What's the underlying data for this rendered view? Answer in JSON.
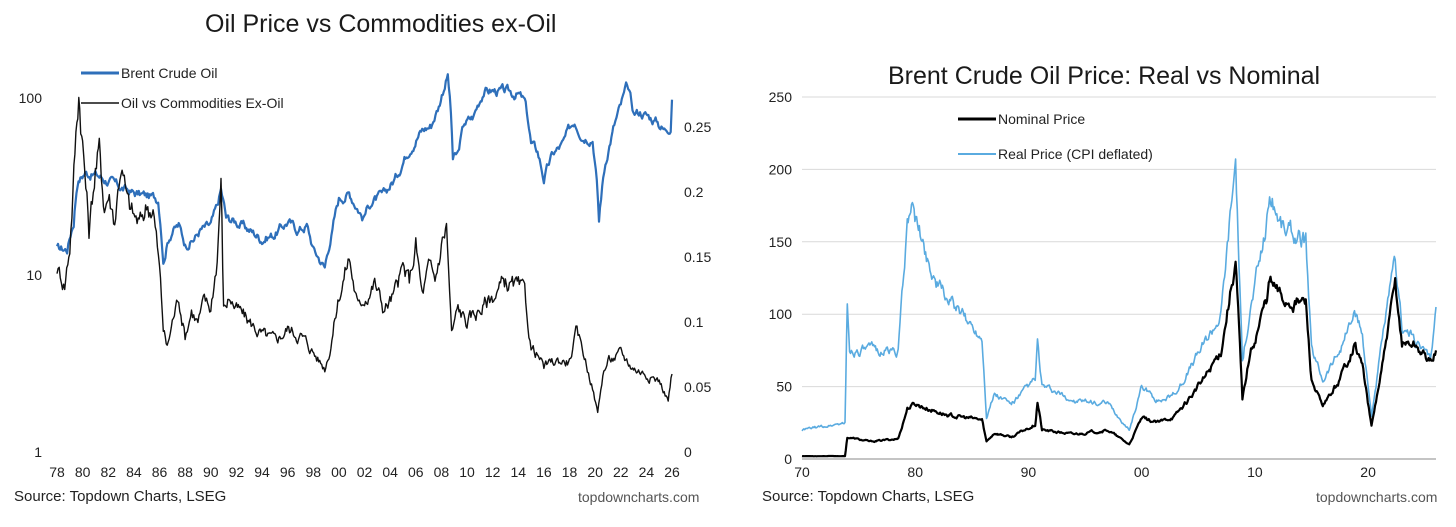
{
  "chart_data": [
    {
      "type": "line",
      "title": "Oil Price vs Commodities ex-Oil",
      "source": "Source: Topdown Charts, LSEG",
      "brand": "topdowncharts.com",
      "legend_position": "top-left",
      "grid": false,
      "x_ticks": [
        "78",
        "80",
        "82",
        "84",
        "86",
        "88",
        "90",
        "92",
        "94",
        "96",
        "98",
        "00",
        "02",
        "04",
        "06",
        "08",
        "10",
        "12",
        "14",
        "16",
        "18",
        "20",
        "22",
        "24",
        "26"
      ],
      "x_range": [
        1978,
        2026
      ],
      "y_left": {
        "scale": "log",
        "range": [
          1,
          160
        ],
        "ticks": [
          "1",
          "10",
          "100"
        ]
      },
      "y_right": {
        "scale": "linear",
        "range": [
          0,
          0.3
        ],
        "ticks": [
          "0",
          "0.05",
          "0.1",
          "0.15",
          "0.2",
          "0.25"
        ]
      },
      "series": [
        {
          "name": "Brent Crude Oil",
          "axis": "left",
          "color": "#2e6fba",
          "x": [
            1978.0,
            1978.8,
            1979.3,
            1979.6,
            1980.2,
            1981.0,
            1982.0,
            1983.0,
            1984.0,
            1985.0,
            1985.9,
            1986.3,
            1986.7,
            1987.0,
            1987.5,
            1988.0,
            1988.7,
            1989.2,
            1990.0,
            1990.5,
            1990.8,
            1991.2,
            1992.0,
            1993.0,
            1994.0,
            1995.0,
            1996.0,
            1996.8,
            1997.5,
            1998.0,
            1998.9,
            1999.5,
            2000.0,
            2000.8,
            2001.9,
            2002.5,
            2003.5,
            2004.5,
            2005.5,
            2006.5,
            2007.2,
            2007.8,
            2008.5,
            2008.9,
            2009.3,
            2009.8,
            2010.5,
            2011.3,
            2012.0,
            2013.0,
            2014.0,
            2014.5,
            2015.0,
            2015.5,
            2016.0,
            2016.7,
            2017.5,
            2018.4,
            2019.0,
            2019.8,
            2020.3,
            2020.8,
            2021.5,
            2022.0,
            2022.5,
            2023.0,
            2023.5,
            2024.0,
            2024.8,
            2025.4,
            2025.9,
            2026.0
          ],
          "values": [
            14,
            14,
            20,
            34,
            38,
            37,
            34,
            31,
            29,
            28,
            27,
            12,
            16,
            18,
            19,
            15,
            16,
            18,
            19,
            24,
            30,
            21,
            20,
            18,
            16,
            17,
            20,
            18,
            19,
            14,
            11,
            18,
            27,
            29,
            21,
            26,
            28,
            36,
            52,
            66,
            70,
            90,
            135,
            45,
            48,
            72,
            78,
            110,
            110,
            108,
            105,
            95,
            55,
            50,
            35,
            48,
            55,
            75,
            62,
            60,
            20,
            43,
            70,
            90,
            115,
            82,
            84,
            80,
            74,
            66,
            70,
            98
          ]
        },
        {
          "name": "Oil vs Commodities Ex-Oil",
          "axis": "right",
          "color": "#111111",
          "x": [
            1978.0,
            1978.6,
            1979.0,
            1979.4,
            1979.7,
            1980.0,
            1980.5,
            1981.0,
            1981.3,
            1981.7,
            1982.0,
            1982.5,
            1983.0,
            1983.5,
            1984.0,
            1984.5,
            1985.0,
            1985.5,
            1986.0,
            1986.3,
            1986.6,
            1987.0,
            1987.5,
            1988.0,
            1988.5,
            1989.0,
            1989.5,
            1990.0,
            1990.5,
            1990.8,
            1991.0,
            1991.5,
            1992.0,
            1993.0,
            1994.0,
            1995.0,
            1996.0,
            1997.0,
            1997.8,
            1998.5,
            1998.9,
            1999.3,
            2000.0,
            2000.8,
            2001.5,
            2002.0,
            2002.8,
            2003.5,
            2004.3,
            2005.0,
            2005.5,
            2006.0,
            2006.5,
            2007.0,
            2007.5,
            2008.0,
            2008.4,
            2008.8,
            2009.3,
            2010.0,
            2011.0,
            2012.0,
            2013.0,
            2014.0,
            2014.5,
            2015.0,
            2015.5,
            2016.0,
            2017.0,
            2018.0,
            2018.5,
            2019.0,
            2019.8,
            2020.2,
            2020.6,
            2021.0,
            2022.0,
            2023.0,
            2024.0,
            2025.0,
            2025.7,
            2026.0
          ],
          "values": [
            0.142,
            0.13,
            0.16,
            0.23,
            0.28,
            0.24,
            0.17,
            0.22,
            0.23,
            0.19,
            0.2,
            0.18,
            0.225,
            0.19,
            0.18,
            0.175,
            0.19,
            0.19,
            0.14,
            0.095,
            0.08,
            0.1,
            0.12,
            0.09,
            0.11,
            0.1,
            0.115,
            0.11,
            0.15,
            0.21,
            0.11,
            0.12,
            0.11,
            0.1,
            0.09,
            0.085,
            0.095,
            0.09,
            0.08,
            0.07,
            0.065,
            0.08,
            0.12,
            0.15,
            0.11,
            0.12,
            0.13,
            0.11,
            0.12,
            0.14,
            0.13,
            0.16,
            0.12,
            0.14,
            0.13,
            0.16,
            0.175,
            0.09,
            0.11,
            0.1,
            0.11,
            0.12,
            0.13,
            0.125,
            0.12,
            0.08,
            0.075,
            0.065,
            0.07,
            0.07,
            0.09,
            0.08,
            0.05,
            0.03,
            0.06,
            0.07,
            0.075,
            0.065,
            0.06,
            0.055,
            0.04,
            0.06
          ]
        }
      ]
    },
    {
      "type": "line",
      "title": "Brent Crude Oil Price: Real vs Nominal",
      "source": "Source: Topdown Charts, LSEG",
      "brand": "topdowncharts.com",
      "legend_position": "top-center",
      "grid": true,
      "x_ticks": [
        "70",
        "80",
        "90",
        "00",
        "10",
        "20"
      ],
      "x_range": [
        1970,
        2026
      ],
      "y_range": [
        0,
        250
      ],
      "y_ticks": [
        "0",
        "50",
        "100",
        "150",
        "200",
        "250"
      ],
      "series": [
        {
          "name": "Nominal Price",
          "color": "#000000",
          "x": [
            1970.0,
            1973.8,
            1974.0,
            1976.0,
            1978.5,
            1979.3,
            1980.0,
            1981.0,
            1983.0,
            1985.9,
            1986.3,
            1987.0,
            1988.5,
            1990.6,
            1990.8,
            1991.2,
            1994.0,
            1997.0,
            1998.9,
            2000.0,
            2001.5,
            2003.0,
            2005.5,
            2007.0,
            2008.3,
            2008.9,
            2009.5,
            2011.0,
            2011.3,
            2012.5,
            2014.5,
            2015.0,
            2016.0,
            2017.5,
            2018.8,
            2019.5,
            2020.3,
            2021.5,
            2022.4,
            2023.0,
            2024.0,
            2025.5,
            2026.0
          ],
          "values": [
            2,
            2,
            15,
            12,
            14,
            35,
            38,
            35,
            30,
            27,
            12,
            18,
            15,
            24,
            40,
            20,
            17,
            20,
            10,
            28,
            25,
            30,
            55,
            75,
            138,
            40,
            70,
            110,
            123,
            110,
            108,
            55,
            35,
            55,
            80,
            65,
            22,
            75,
            120,
            80,
            80,
            67,
            75
          ]
        },
        {
          "name": "Real Price (CPI deflated)",
          "color": "#5aabe0",
          "x": [
            1970.0,
            1973.8,
            1974.0,
            1974.2,
            1976.0,
            1978.5,
            1979.3,
            1979.6,
            1980.2,
            1981.0,
            1982.0,
            1984.0,
            1985.9,
            1986.3,
            1987.0,
            1988.5,
            1990.6,
            1990.8,
            1991.2,
            1994.0,
            1997.0,
            1998.9,
            2000.0,
            2001.5,
            2003.0,
            2005.5,
            2007.0,
            2008.3,
            2008.9,
            2009.5,
            2011.0,
            2011.3,
            2012.5,
            2014.5,
            2015.0,
            2016.0,
            2017.5,
            2018.8,
            2019.5,
            2020.3,
            2021.5,
            2022.4,
            2023.0,
            2024.0,
            2025.5,
            2026.0
          ],
          "values": [
            20,
            25,
            106,
            75,
            75,
            75,
            160,
            178,
            160,
            140,
            120,
            100,
            85,
            30,
            45,
            38,
            55,
            80,
            50,
            40,
            38,
            20,
            50,
            40,
            45,
            80,
            100,
            208,
            65,
            100,
            160,
            182,
            160,
            150,
            75,
            55,
            75,
            100,
            85,
            30,
            95,
            135,
            90,
            85,
            68,
            105
          ]
        }
      ]
    }
  ]
}
